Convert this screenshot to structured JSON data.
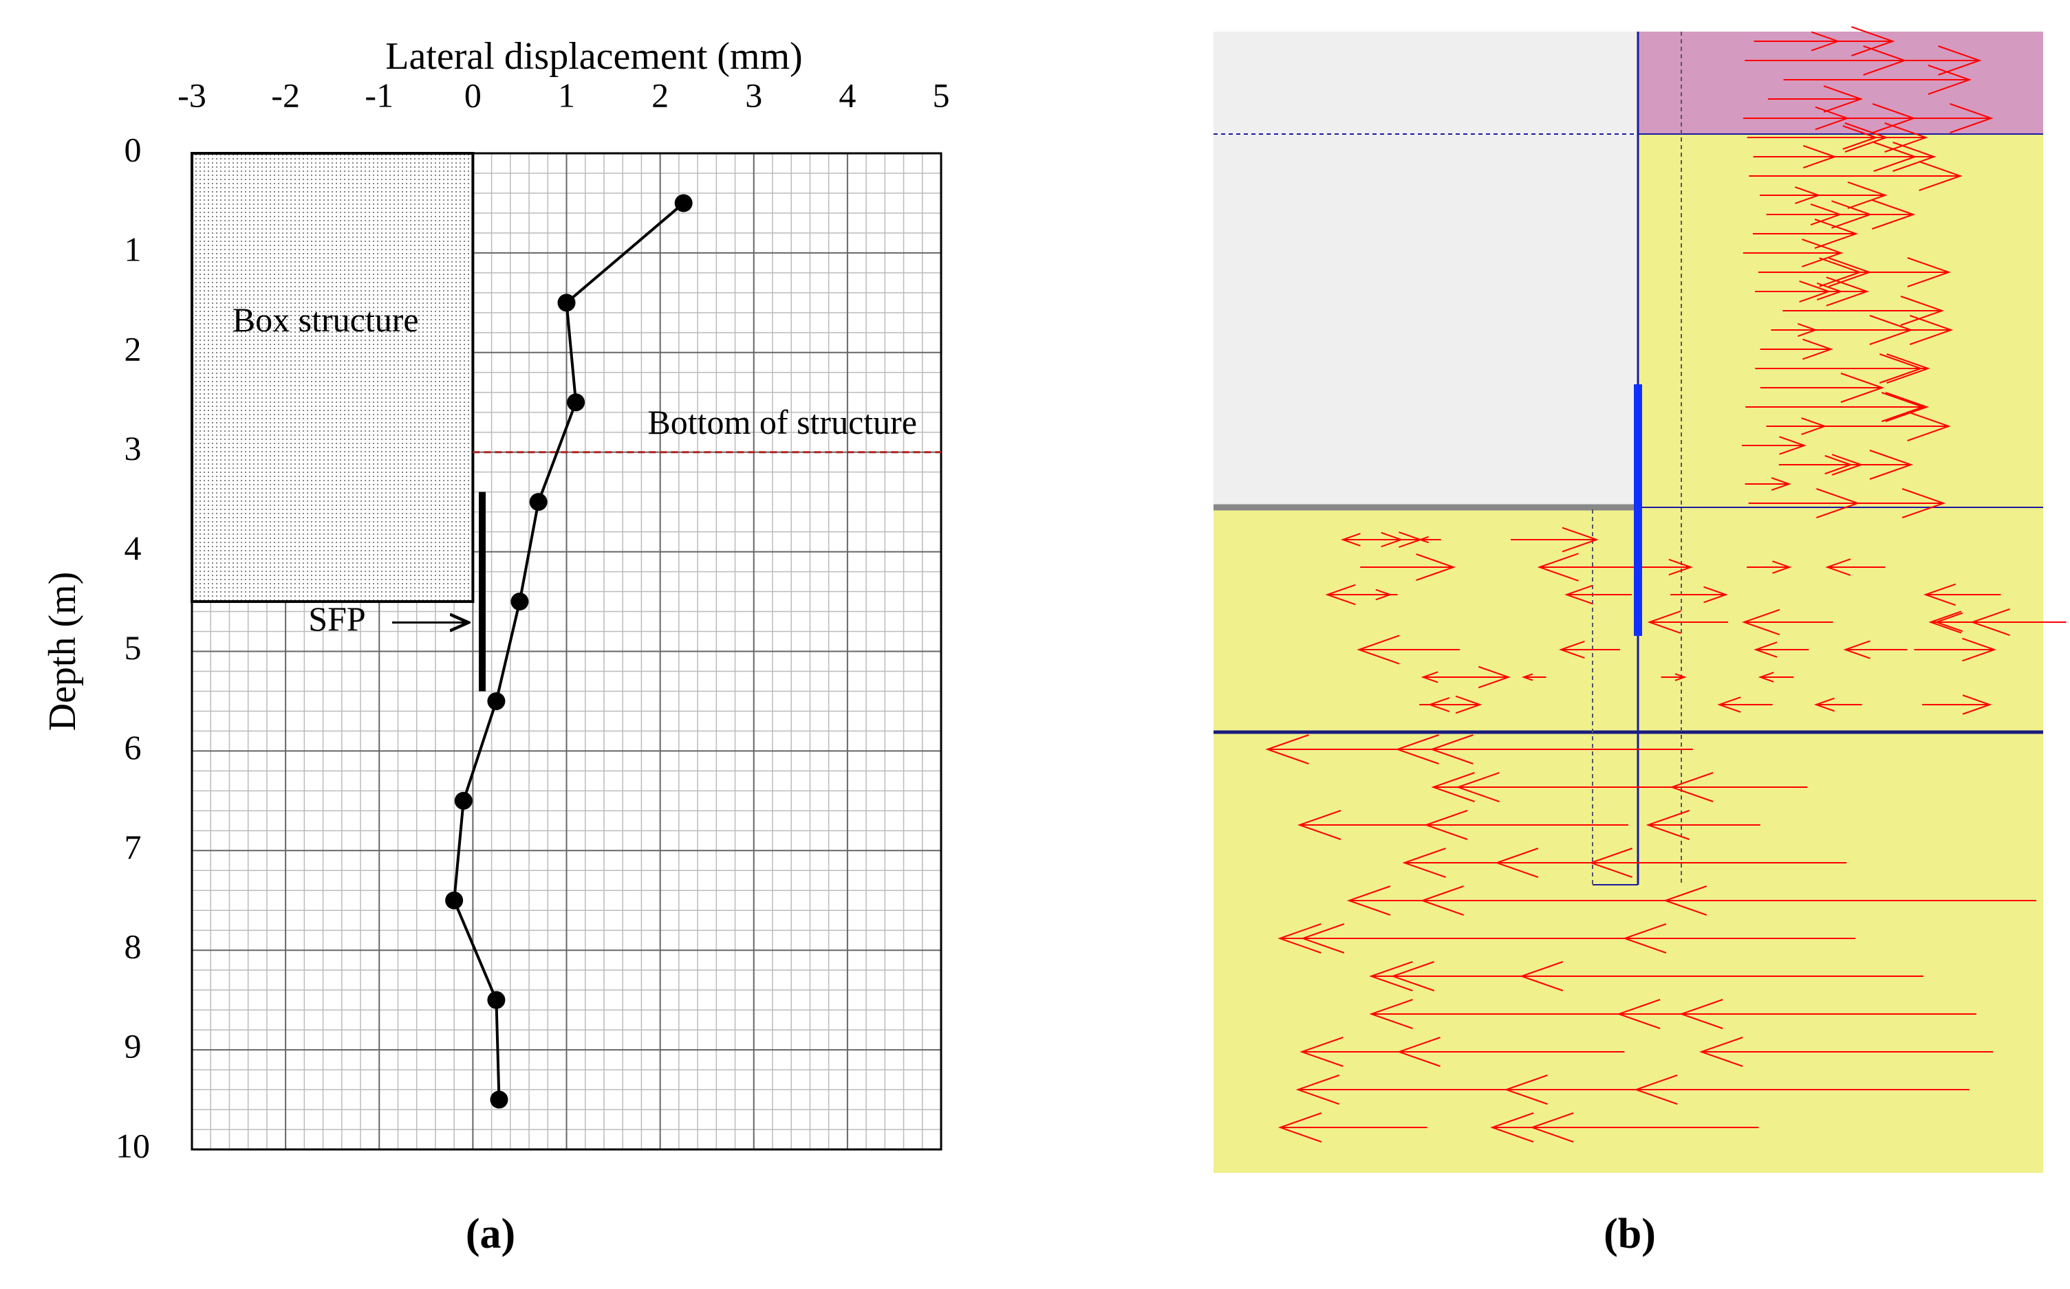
{
  "chart_data": {
    "type": "line",
    "x_label": "Lateral displacement (mm)",
    "y_label": "Depth (m)",
    "xlim": [
      -3,
      5
    ],
    "xticks": [
      -3,
      -2,
      -1,
      0,
      1,
      2,
      3,
      4,
      5
    ],
    "ylim": [
      0,
      10
    ],
    "yticks": [
      0,
      1,
      2,
      3,
      4,
      5,
      6,
      7,
      8,
      9,
      10
    ],
    "y_reversed": true,
    "grid": true,
    "minor_divisions": 5,
    "series": [
      {
        "color": "#000000",
        "x": [
          2.25,
          1.0,
          1.1,
          0.7,
          0.5,
          0.25,
          -0.1,
          -0.2,
          0.25,
          0.28
        ],
        "values": [
          0.5,
          1.5,
          2.5,
          3.5,
          4.5,
          5.5,
          6.5,
          7.5,
          8.5,
          9.5
        ]
      }
    ],
    "annotations": [
      {
        "text": "Box structure",
        "x": [
          -3,
          0
        ],
        "y": [
          0,
          4.5
        ]
      },
      {
        "text": "Bottom of structure",
        "x": [
          0,
          5
        ],
        "y": 3,
        "color": "#b22222"
      },
      {
        "text": "SFP",
        "x": 0.1,
        "y": [
          3.4,
          5.4
        ]
      }
    ],
    "panel_label": "(a)"
  },
  "figure_b": {
    "panel_label": "(b)"
  }
}
